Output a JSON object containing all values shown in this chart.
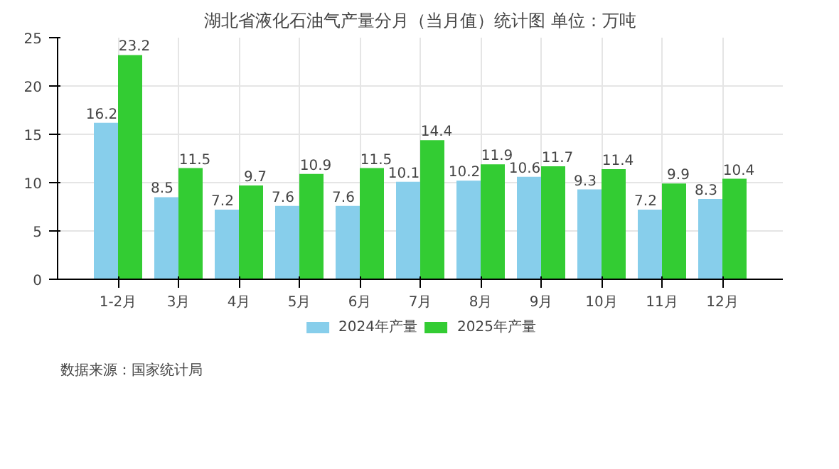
{
  "chart_data": {
    "type": "bar",
    "title": "湖北省液化石油气产量分月（当月值）统计图 单位：万吨",
    "categories": [
      "1-2月",
      "3月",
      "4月",
      "5月",
      "6月",
      "7月",
      "8月",
      "9月",
      "10月",
      "11月",
      "12月"
    ],
    "series": [
      {
        "name": "2024年产量",
        "color": "#87ceeb",
        "values": [
          16.2,
          8.5,
          7.2,
          7.6,
          7.6,
          10.1,
          10.2,
          10.6,
          9.3,
          7.2,
          8.3
        ]
      },
      {
        "name": "2025年产量",
        "color": "#33cc33",
        "values": [
          23.2,
          11.5,
          9.7,
          10.9,
          11.5,
          14.4,
          11.9,
          11.7,
          11.4,
          9.9,
          10.4
        ]
      }
    ],
    "ylim": [
      0,
      25
    ],
    "yticks": [
      0,
      5,
      10,
      15,
      20,
      25
    ],
    "grid": true,
    "legend": "bottom",
    "data_labels": true,
    "annotations": [
      "数据来源：国家统计局"
    ]
  }
}
